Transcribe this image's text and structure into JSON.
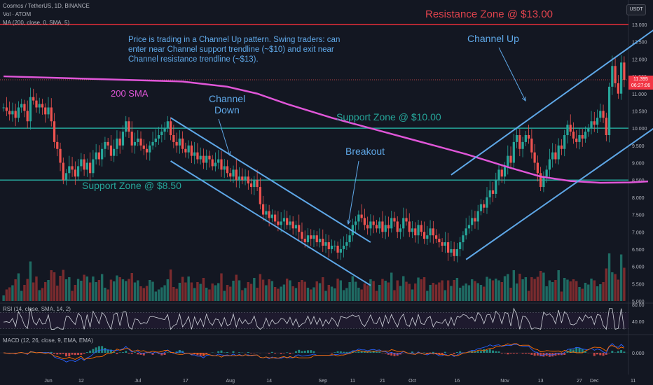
{
  "header": {
    "symbol_line": "Cosmos / TetherUS, 1D, BINANCE",
    "vol_line": "Vol · ATOM",
    "ma_line": "MA (200, close, 0, SMA, 5)",
    "rsi_line": "RSI (14, close, SMA, 14, 2)",
    "macd_line": "MACD (12, 26, close, 9, EMA, EMA)",
    "currency_button": "USDT"
  },
  "price_badge": {
    "price": "11.395",
    "countdown": "06:27:06"
  },
  "annotations": {
    "resistance": "Resistance Zone @ $13.00",
    "support_10": "Support Zone @ $10.00",
    "support_85": "Support Zone @ $8.50",
    "sma_label": "200 SMA",
    "channel_down_1": "Channel",
    "channel_down_2": "Down",
    "channel_up": "Channel Up",
    "breakout": "Breakout",
    "note_1": "Price is trading in a Channel Up pattern. Swing traders: can",
    "note_2": "enter near Channel support trendline (~$10) and exit near",
    "note_3": "Channel resistance trendline (~$13)."
  },
  "colors": {
    "background": "#131722",
    "up": "#26a69a",
    "down": "#ef5350",
    "sma": "#e056d8",
    "trendline": "#5fa8e8",
    "zone_line": "#26a69a",
    "resistance_line": "#b22833",
    "annotation_text": "#5fa8e8",
    "resistance_text": "#e0434d"
  },
  "chart_data": {
    "type": "candlestick",
    "title": "Cosmos / TetherUS, 1D, BINANCE",
    "ylim": [
      5.0,
      13.0
    ],
    "y_ticks": [
      "13.000",
      "12.500",
      "12.000",
      "11.500",
      "11.000",
      "10.500",
      "10.000",
      "9.500",
      "9.000",
      "8.500",
      "8.000",
      "7.500",
      "7.000",
      "6.500",
      "6.000",
      "5.500",
      "5.000"
    ],
    "x_ticks": [
      {
        "label": "Jun",
        "day": 15
      },
      {
        "label": "12",
        "day": 26
      },
      {
        "label": "Jul",
        "day": 45
      },
      {
        "label": "17",
        "day": 61
      },
      {
        "label": "Aug",
        "day": 76
      },
      {
        "label": "14",
        "day": 89
      },
      {
        "label": "Sep",
        "day": 107
      },
      {
        "label": "11",
        "day": 117
      },
      {
        "label": "21",
        "day": 127
      },
      {
        "label": "Oct",
        "day": 137
      },
      {
        "label": "16",
        "day": 152
      },
      {
        "label": "Nov",
        "day": 168
      },
      {
        "label": "13",
        "day": 180
      },
      {
        "label": "27",
        "day": 193
      },
      {
        "label": "Dec",
        "day": 198
      },
      {
        "label": "11",
        "day": 211
      }
    ],
    "levels": {
      "resistance": 13.0,
      "support_upper": 10.0,
      "support_lower": 8.5
    },
    "sma200": [
      [
        0,
        11.5
      ],
      [
        20,
        11.45
      ],
      [
        40,
        11.4
      ],
      [
        60,
        11.35
      ],
      [
        75,
        11.2
      ],
      [
        85,
        11.0
      ],
      [
        95,
        10.7
      ],
      [
        110,
        10.3
      ],
      [
        125,
        9.95
      ],
      [
        140,
        9.6
      ],
      [
        155,
        9.25
      ],
      [
        170,
        8.85
      ],
      [
        180,
        8.6
      ],
      [
        190,
        8.47
      ],
      [
        200,
        8.42
      ],
      [
        210,
        8.43
      ],
      [
        216,
        8.46
      ]
    ],
    "channel_down": {
      "upper": [
        [
          56,
          10.3
        ],
        [
          123,
          6.7
        ]
      ],
      "lower": [
        [
          56,
          9.05
        ],
        [
          123,
          5.45
        ]
      ]
    },
    "channel_up": {
      "upper": [
        [
          150,
          8.65
        ],
        [
          218,
          12.85
        ]
      ],
      "lower": [
        [
          155,
          6.2
        ],
        [
          218,
          10.0
        ]
      ]
    },
    "rsi": {
      "bands": [
        70,
        30
      ],
      "tick_labels": [
        "80.00",
        "40.00"
      ]
    },
    "macd": {
      "tick_labels": [
        "0.000"
      ]
    },
    "closes": [
      10.6,
      10.5,
      10.4,
      10.5,
      10.3,
      10.6,
      10.7,
      10.5,
      10.2,
      10.9,
      10.8,
      10.6,
      10.7,
      10.6,
      10.4,
      10.6,
      10.2,
      9.6,
      9.4,
      9.0,
      8.5,
      8.7,
      8.9,
      8.8,
      8.6,
      8.9,
      9.1,
      8.8,
      9.0,
      8.7,
      9.1,
      9.3,
      9.1,
      9.4,
      9.6,
      9.5,
      9.2,
      9.4,
      9.7,
      9.5,
      9.9,
      10.2,
      9.9,
      9.5,
      9.6,
      9.7,
      9.5,
      9.4,
      9.3,
      9.5,
      9.6,
      9.7,
      9.8,
      9.9,
      10.0,
      10.2,
      9.8,
      9.6,
      9.5,
      9.7,
      9.4,
      9.3,
      9.5,
      9.2,
      9.3,
      9.1,
      9.2,
      9.0,
      9.2,
      9.1,
      8.9,
      9.0,
      9.1,
      8.8,
      8.9,
      8.7,
      8.6,
      8.8,
      8.5,
      8.6,
      8.5,
      8.6,
      8.4,
      8.3,
      8.5,
      8.3,
      7.8,
      7.5,
      7.6,
      7.4,
      7.5,
      7.3,
      7.2,
      7.3,
      7.4,
      7.2,
      7.3,
      7.1,
      7.2,
      7.0,
      6.8,
      6.7,
      6.9,
      6.8,
      6.9,
      6.7,
      6.8,
      6.6,
      6.7,
      6.5,
      6.6,
      6.6,
      6.4,
      6.5,
      6.6,
      6.7,
      6.9,
      7.2,
      7.3,
      7.5,
      7.4,
      7.2,
      7.1,
      7.3,
      7.2,
      7.1,
      7.3,
      7.0,
      7.2,
      7.1,
      7.4,
      7.3,
      7.0,
      7.1,
      7.4,
      7.3,
      7.0,
      7.1,
      6.9,
      7.2,
      7.0,
      6.8,
      6.9,
      7.1,
      6.9,
      6.8,
      6.7,
      6.6,
      6.7,
      6.4,
      6.5,
      6.3,
      6.5,
      6.7,
      6.9,
      7.1,
      7.2,
      7.4,
      7.3,
      7.6,
      7.8,
      7.7,
      8.0,
      8.2,
      8.1,
      8.5,
      8.8,
      8.6,
      8.9,
      9.2,
      9.0,
      9.6,
      9.8,
      9.4,
      9.6,
      9.8,
      9.7,
      9.3,
      9.0,
      8.7,
      8.3,
      8.6,
      8.8,
      9.1,
      9.3,
      9.1,
      9.5,
      9.4,
      9.8,
      10.1,
      9.9,
      9.7,
      9.6,
      9.8,
      9.7,
      9.9,
      10.0,
      10.2,
      10.1,
      10.3,
      10.5,
      10.3,
      9.8,
      11.2,
      11.8,
      11.3,
      11.0,
      11.9,
      11.4
    ]
  }
}
